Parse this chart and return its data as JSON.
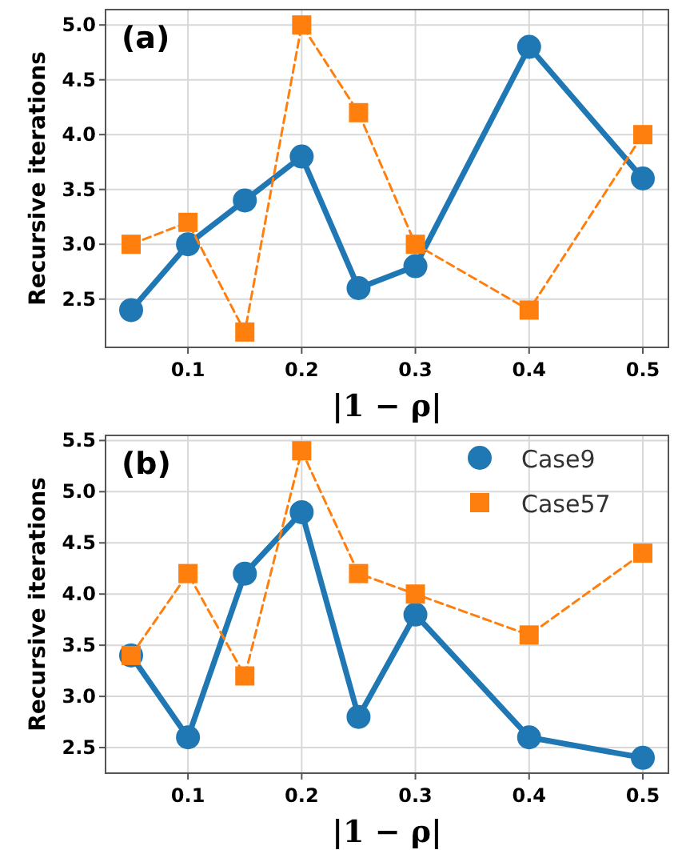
{
  "chart_data": [
    {
      "type": "line",
      "x": [
        0.05,
        0.1,
        0.15,
        0.2,
        0.25,
        0.3,
        0.4,
        0.5
      ],
      "xlabel": "|1 − ρ|",
      "ylabel": "Recursive iterations",
      "annotations": [
        "(a)"
      ],
      "xlim": [
        0.0275,
        0.5225
      ],
      "xticks": [
        0.1,
        0.2,
        0.3,
        0.4,
        0.5
      ],
      "ylim": [
        2.06,
        5.14
      ],
      "yticks": [
        2.5,
        {
          "value": 3,
          "label": "3.0"
        },
        3.5,
        {
          "value": 4,
          "label": "4.0"
        },
        4.5,
        {
          "value": 5,
          "label": "5.0"
        }
      ],
      "grid": true,
      "legend": false,
      "series": [
        {
          "color": "#1f77b4",
          "marker": "circle",
          "line_style": "solid",
          "values": [
            2.4,
            3.0,
            3.4,
            3.8,
            2.6,
            2.8,
            4.8,
            3.6
          ]
        },
        {
          "color": "#ff7f0e",
          "marker": "square",
          "line_style": "dashed",
          "values": [
            3.0,
            3.2,
            2.2,
            5.0,
            4.2,
            3.0,
            2.4,
            4.0
          ]
        }
      ]
    },
    {
      "type": "line",
      "x": [
        0.05,
        0.1,
        0.15,
        0.2,
        0.25,
        0.3,
        0.4,
        0.5
      ],
      "xlabel": "|1 − ρ|",
      "ylabel": "Recursive iterations",
      "annotations": [
        "(b)"
      ],
      "xlim": [
        0.0275,
        0.5225
      ],
      "xticks": [
        0.1,
        0.2,
        0.3,
        0.4,
        0.5
      ],
      "ylim": [
        2.25,
        5.55
      ],
      "yticks": [
        2.5,
        {
          "value": 3,
          "label": "3.0"
        },
        3.5,
        {
          "value": 4,
          "label": "4.0"
        },
        4.5,
        {
          "value": 5,
          "label": "5.0"
        },
        5.5
      ],
      "grid": true,
      "legend": "top right",
      "series": [
        {
          "name": "Case9",
          "color": "#1f77b4",
          "marker": "circle",
          "line_style": "solid",
          "values": [
            3.4,
            2.6,
            4.2,
            4.8,
            2.8,
            3.8,
            2.6,
            2.4
          ]
        },
        {
          "name": "Case57",
          "color": "#ff7f0e",
          "marker": "square",
          "line_style": "dashed",
          "values": [
            3.4,
            4.2,
            3.2,
            5.4,
            4.2,
            4.0,
            3.6,
            4.4
          ]
        }
      ]
    }
  ]
}
